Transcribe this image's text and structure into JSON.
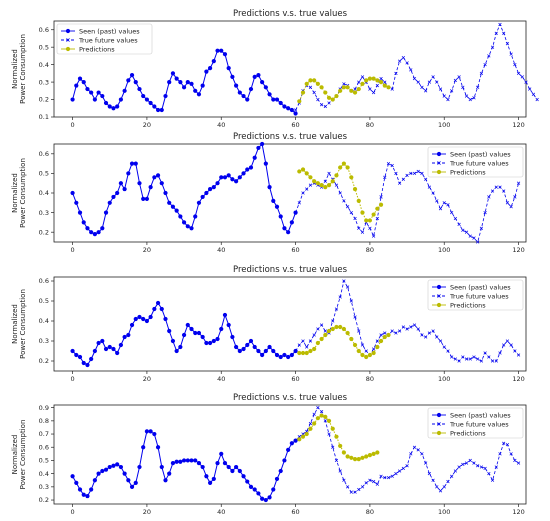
{
  "chart_data": [
    {
      "type": "line",
      "title": "Predictions v.s. true values",
      "ylabel": "Normalized\nPower Consumption",
      "xlim": [
        -5,
        122
      ],
      "ylim": [
        0.1,
        0.65
      ],
      "x_ticks": [
        0,
        20,
        40,
        60,
        80,
        100,
        120
      ],
      "y_ticks": [
        0.1,
        0.2,
        0.3,
        0.4,
        0.5,
        0.6
      ],
      "legend_position": "top-left",
      "series": [
        {
          "name": "Seen (past) values",
          "color": "#0000ee",
          "marker": "dot",
          "x_start": 0,
          "values": [
            0.2,
            0.28,
            0.32,
            0.3,
            0.26,
            0.24,
            0.2,
            0.24,
            0.22,
            0.18,
            0.16,
            0.15,
            0.16,
            0.2,
            0.25,
            0.31,
            0.34,
            0.3,
            0.26,
            0.22,
            0.2,
            0.18,
            0.16,
            0.14,
            0.14,
            0.22,
            0.3,
            0.35,
            0.32,
            0.3,
            0.27,
            0.3,
            0.29,
            0.25,
            0.23,
            0.28,
            0.36,
            0.38,
            0.42,
            0.48,
            0.48,
            0.46,
            0.38,
            0.33,
            0.28,
            0.24,
            0.22,
            0.2,
            0.26,
            0.33,
            0.34,
            0.3,
            0.27,
            0.23,
            0.2,
            0.2,
            0.18,
            0.16,
            0.15,
            0.14,
            0.12
          ]
        },
        {
          "name": "True future values",
          "color": "#0000ee",
          "marker": "x",
          "x_start": 60,
          "values": [
            0.14,
            0.18,
            0.25,
            0.28,
            0.27,
            0.24,
            0.2,
            0.17,
            0.16,
            0.18,
            0.2,
            0.22,
            0.26,
            0.29,
            0.28,
            0.25,
            0.26,
            0.3,
            0.33,
            0.3,
            0.26,
            0.24,
            0.28,
            0.32,
            0.3,
            0.27,
            0.26,
            0.35,
            0.42,
            0.44,
            0.41,
            0.37,
            0.32,
            0.3,
            0.27,
            0.25,
            0.3,
            0.33,
            0.3,
            0.26,
            0.22,
            0.2,
            0.25,
            0.31,
            0.33,
            0.27,
            0.22,
            0.2,
            0.21,
            0.27,
            0.35,
            0.4,
            0.45,
            0.5,
            0.58,
            0.63,
            0.58,
            0.52,
            0.46,
            0.4,
            0.35,
            0.33,
            0.3,
            0.26,
            0.23,
            0.2
          ]
        },
        {
          "name": "Predictions",
          "color": "#bbbb00",
          "marker": "dot",
          "x_start": 61,
          "values": [
            0.19,
            0.24,
            0.29,
            0.31,
            0.31,
            0.29,
            0.27,
            0.24,
            0.21,
            0.2,
            0.22,
            0.25,
            0.27,
            0.27,
            0.25,
            0.24,
            0.26,
            0.29,
            0.31,
            0.32,
            0.32,
            0.31,
            0.3,
            0.28,
            0.27
          ]
        }
      ]
    },
    {
      "type": "line",
      "title": "Predictions v.s. true values",
      "ylabel": "Normalized\nPower Consumption",
      "xlim": [
        -5,
        122
      ],
      "ylim": [
        0.15,
        0.65
      ],
      "x_ticks": [
        0,
        20,
        40,
        60,
        80,
        100,
        120
      ],
      "y_ticks": [
        0.2,
        0.3,
        0.4,
        0.5,
        0.6
      ],
      "legend_position": "top-right",
      "series": [
        {
          "name": "Seen (past) values",
          "color": "#0000ee",
          "marker": "dot",
          "x_start": 0,
          "values": [
            0.4,
            0.35,
            0.3,
            0.25,
            0.22,
            0.2,
            0.19,
            0.2,
            0.22,
            0.3,
            0.35,
            0.38,
            0.4,
            0.45,
            0.42,
            0.5,
            0.55,
            0.55,
            0.45,
            0.37,
            0.37,
            0.43,
            0.48,
            0.49,
            0.45,
            0.4,
            0.35,
            0.33,
            0.31,
            0.28,
            0.25,
            0.23,
            0.22,
            0.28,
            0.35,
            0.38,
            0.4,
            0.42,
            0.43,
            0.45,
            0.48,
            0.48,
            0.49,
            0.47,
            0.46,
            0.48,
            0.5,
            0.52,
            0.53,
            0.58,
            0.63,
            0.65,
            0.55,
            0.43,
            0.36,
            0.33,
            0.28,
            0.22,
            0.2,
            0.25,
            0.3
          ]
        },
        {
          "name": "True future values",
          "color": "#0000ee",
          "marker": "x",
          "x_start": 60,
          "values": [
            0.3,
            0.35,
            0.4,
            0.42,
            0.44,
            0.45,
            0.44,
            0.43,
            0.46,
            0.5,
            0.47,
            0.44,
            0.4,
            0.36,
            0.33,
            0.3,
            0.27,
            0.22,
            0.2,
            0.25,
            0.22,
            0.18,
            0.27,
            0.38,
            0.48,
            0.55,
            0.54,
            0.5,
            0.45,
            0.47,
            0.49,
            0.5,
            0.5,
            0.51,
            0.5,
            0.47,
            0.43,
            0.4,
            0.36,
            0.32,
            0.35,
            0.34,
            0.3,
            0.27,
            0.24,
            0.21,
            0.2,
            0.18,
            0.17,
            0.15,
            0.22,
            0.3,
            0.38,
            0.41,
            0.43,
            0.43,
            0.41,
            0.35,
            0.33,
            0.38,
            0.45
          ]
        },
        {
          "name": "Predictions",
          "color": "#bbbb00",
          "marker": "dot",
          "x_start": 61,
          "values": [
            0.51,
            0.52,
            0.5,
            0.48,
            0.46,
            0.45,
            0.44,
            0.43,
            0.44,
            0.46,
            0.49,
            0.53,
            0.55,
            0.53,
            0.48,
            0.42,
            0.36,
            0.3,
            0.26,
            0.26,
            0.29,
            0.32,
            0.34
          ]
        }
      ]
    },
    {
      "type": "line",
      "title": "Predictions v.s. true values",
      "ylabel": "Normalized\nPower Consumption",
      "xlim": [
        -5,
        122
      ],
      "ylim": [
        0.15,
        0.62
      ],
      "x_ticks": [
        0,
        20,
        40,
        60,
        80,
        100,
        120
      ],
      "y_ticks": [
        0.2,
        0.3,
        0.4,
        0.5,
        0.6
      ],
      "legend_position": "top-right",
      "series": [
        {
          "name": "Seen (past) values",
          "color": "#0000ee",
          "marker": "dot",
          "x_start": 0,
          "values": [
            0.25,
            0.23,
            0.22,
            0.19,
            0.18,
            0.21,
            0.25,
            0.29,
            0.3,
            0.26,
            0.27,
            0.26,
            0.24,
            0.28,
            0.32,
            0.33,
            0.38,
            0.41,
            0.42,
            0.41,
            0.4,
            0.42,
            0.46,
            0.49,
            0.46,
            0.41,
            0.35,
            0.3,
            0.25,
            0.27,
            0.33,
            0.38,
            0.36,
            0.34,
            0.34,
            0.32,
            0.29,
            0.29,
            0.3,
            0.31,
            0.36,
            0.43,
            0.38,
            0.32,
            0.27,
            0.25,
            0.26,
            0.28,
            0.3,
            0.27,
            0.25,
            0.23,
            0.25,
            0.27,
            0.25,
            0.23,
            0.22,
            0.23,
            0.22,
            0.23,
            0.25
          ]
        },
        {
          "name": "True future values",
          "color": "#0000ee",
          "marker": "x",
          "x_start": 60,
          "values": [
            0.25,
            0.28,
            0.3,
            0.27,
            0.3,
            0.33,
            0.36,
            0.38,
            0.35,
            0.34,
            0.4,
            0.46,
            0.52,
            0.6,
            0.57,
            0.5,
            0.42,
            0.35,
            0.28,
            0.25,
            0.23,
            0.26,
            0.3,
            0.33,
            0.34,
            0.33,
            0.35,
            0.34,
            0.35,
            0.37,
            0.36,
            0.37,
            0.38,
            0.36,
            0.33,
            0.32,
            0.34,
            0.35,
            0.32,
            0.3,
            0.27,
            0.25,
            0.22,
            0.21,
            0.2,
            0.22,
            0.21,
            0.21,
            0.22,
            0.21,
            0.2,
            0.24,
            0.22,
            0.2,
            0.2,
            0.24,
            0.28,
            0.3,
            0.28,
            0.25,
            0.23
          ]
        },
        {
          "name": "Predictions",
          "color": "#bbbb00",
          "marker": "dot",
          "x_start": 61,
          "values": [
            0.24,
            0.24,
            0.24,
            0.25,
            0.26,
            0.29,
            0.31,
            0.33,
            0.35,
            0.36,
            0.37,
            0.37,
            0.36,
            0.34,
            0.31,
            0.28,
            0.25,
            0.23,
            0.22,
            0.23,
            0.24,
            0.27,
            0.3,
            0.32,
            0.33
          ]
        }
      ]
    },
    {
      "type": "line",
      "title": "Predictions v.s. true values",
      "ylabel": "Normalized\nPower Consumption",
      "xlim": [
        -5,
        122
      ],
      "ylim": [
        0.17,
        0.92
      ],
      "x_ticks": [
        0,
        20,
        40,
        60,
        80,
        100,
        120
      ],
      "y_ticks": [
        0.2,
        0.3,
        0.4,
        0.5,
        0.6,
        0.7,
        0.8,
        0.9
      ],
      "legend_position": "top-right",
      "series": [
        {
          "name": "Seen (past) values",
          "color": "#0000ee",
          "marker": "dot",
          "x_start": 0,
          "values": [
            0.38,
            0.33,
            0.28,
            0.24,
            0.23,
            0.28,
            0.35,
            0.4,
            0.42,
            0.43,
            0.45,
            0.46,
            0.47,
            0.45,
            0.4,
            0.35,
            0.3,
            0.33,
            0.45,
            0.6,
            0.72,
            0.72,
            0.7,
            0.6,
            0.45,
            0.35,
            0.4,
            0.48,
            0.49,
            0.49,
            0.5,
            0.5,
            0.5,
            0.5,
            0.48,
            0.45,
            0.38,
            0.33,
            0.36,
            0.48,
            0.55,
            0.48,
            0.45,
            0.42,
            0.45,
            0.42,
            0.38,
            0.34,
            0.3,
            0.28,
            0.25,
            0.21,
            0.2,
            0.22,
            0.28,
            0.36,
            0.42,
            0.5,
            0.58,
            0.63,
            0.65
          ]
        },
        {
          "name": "True future values",
          "color": "#0000ee",
          "marker": "x",
          "x_start": 60,
          "values": [
            0.65,
            0.68,
            0.7,
            0.72,
            0.78,
            0.85,
            0.9,
            0.87,
            0.8,
            0.7,
            0.6,
            0.5,
            0.42,
            0.35,
            0.3,
            0.26,
            0.26,
            0.28,
            0.3,
            0.33,
            0.35,
            0.34,
            0.32,
            0.38,
            0.37,
            0.37,
            0.38,
            0.4,
            0.42,
            0.44,
            0.46,
            0.55,
            0.6,
            0.58,
            0.55,
            0.48,
            0.4,
            0.35,
            0.3,
            0.27,
            0.3,
            0.34,
            0.38,
            0.42,
            0.45,
            0.47,
            0.48,
            0.5,
            0.48,
            0.46,
            0.45,
            0.44,
            0.4,
            0.35,
            0.45,
            0.55,
            0.63,
            0.62,
            0.55,
            0.5,
            0.48
          ]
        },
        {
          "name": "Predictions",
          "color": "#bbbb00",
          "marker": "dot",
          "x_start": 61,
          "values": [
            0.66,
            0.68,
            0.7,
            0.74,
            0.78,
            0.82,
            0.84,
            0.83,
            0.8,
            0.74,
            0.68,
            0.61,
            0.56,
            0.53,
            0.52,
            0.51,
            0.51,
            0.52,
            0.53,
            0.54,
            0.55,
            0.56
          ]
        }
      ]
    }
  ]
}
